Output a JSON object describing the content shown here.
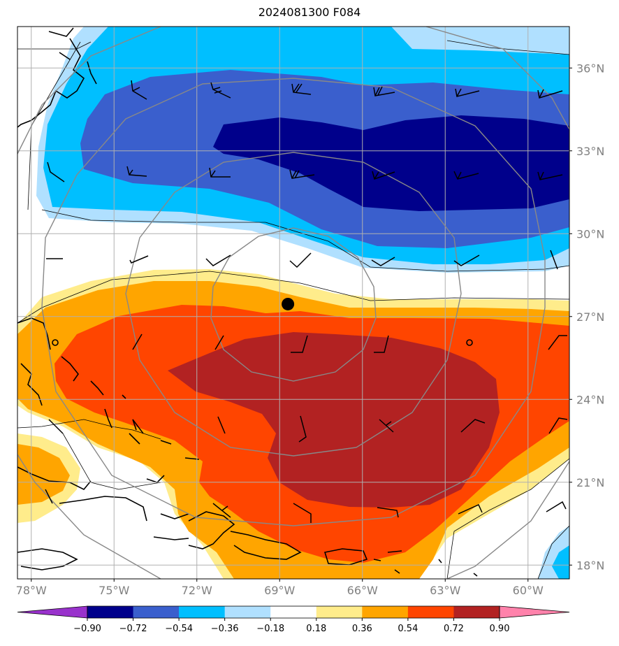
{
  "title": "2024081300 F084",
  "map": {
    "lon_range": [
      -78.5,
      -58.5
    ],
    "lat_range": [
      17.5,
      37.5
    ],
    "lon_ticks": [
      {
        "value": -78,
        "label": "78°W"
      },
      {
        "value": -75,
        "label": "75°W"
      },
      {
        "value": -72,
        "label": "72°W"
      },
      {
        "value": -69,
        "label": "69°W"
      },
      {
        "value": -66,
        "label": "66°W"
      },
      {
        "value": -63,
        "label": "63°W"
      },
      {
        "value": -60,
        "label": "60°W"
      }
    ],
    "lat_ticks": [
      {
        "value": 36,
        "label": "36°N"
      },
      {
        "value": 33,
        "label": "33°N"
      },
      {
        "value": 30,
        "label": "30°N"
      },
      {
        "value": 27,
        "label": "27°N"
      },
      {
        "value": 24,
        "label": "24°N"
      },
      {
        "value": 21,
        "label": "21°N"
      },
      {
        "value": 18,
        "label": "18°N"
      }
    ],
    "center_marker": {
      "lon": -68.7,
      "lat": 27.45
    },
    "colors": {
      "tick_label": "#808080",
      "grid": "#b0b0b0",
      "range_ring": "#888888",
      "coast": "#000000"
    }
  },
  "colorbar": {
    "levels": [
      "−0.90",
      "−0.72",
      "−0.54",
      "−0.36",
      "−0.18",
      "0.18",
      "0.36",
      "0.54",
      "0.72",
      "0.90"
    ],
    "colors": [
      "#9932cc",
      "#00008b",
      "#3a5fcd",
      "#00bfff",
      "#b0e0ff",
      "#ffffff",
      "#ffec8b",
      "#ffa500",
      "#ff4500",
      "#b22222",
      "#ff82ab"
    ]
  }
}
